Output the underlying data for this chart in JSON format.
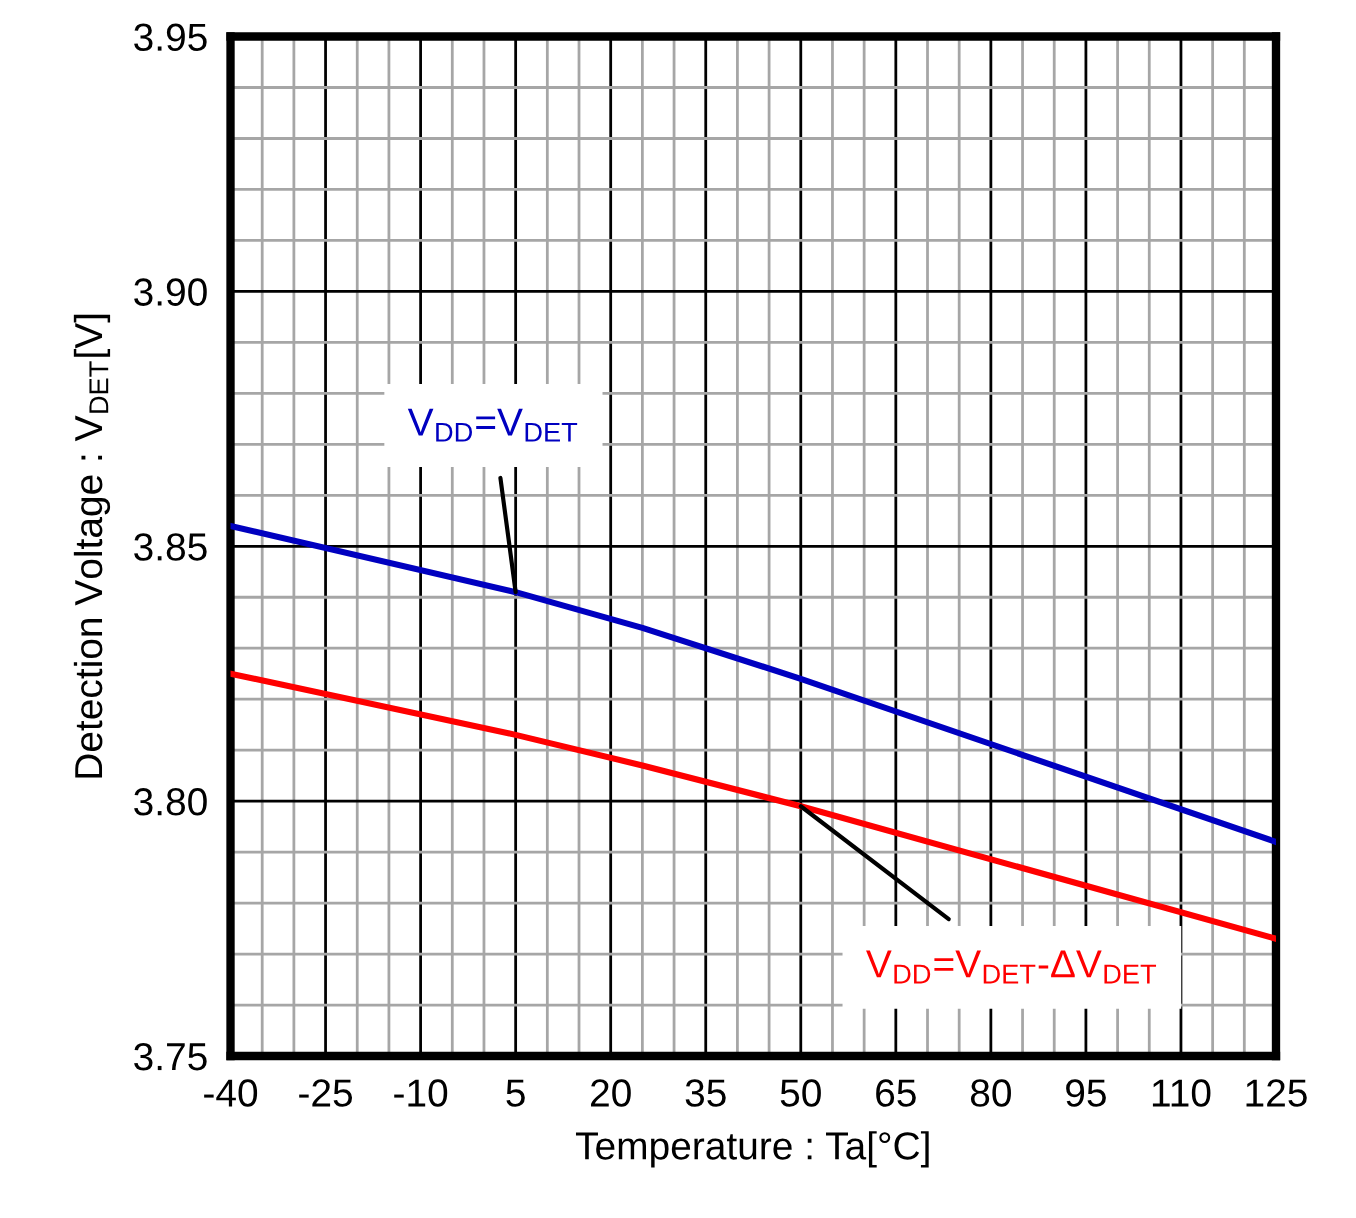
{
  "chart_data": {
    "type": "line",
    "xlabel": "Temperature : Ta[°C]",
    "ylabel": "Detection Voltage : V$_{DET}$[V]",
    "x": [
      -40,
      5,
      25,
      50,
      125
    ],
    "series": [
      {
        "color": "#0000c0",
        "values": [
          3.854,
          3.841,
          3.834,
          3.824,
          3.792
        ]
      },
      {
        "color": "#ff0000",
        "values": [
          3.825,
          3.813,
          3.807,
          3.799,
          3.773
        ]
      }
    ],
    "annotations": [
      {
        "text": "V$_{DD}$=V$_{DET}$",
        "x": 5,
        "y": 3.841
      },
      {
        "text": "V$_{DD}$=V$_{DET}$-ΔV$_{DET}$",
        "x": 50,
        "y": 3.799
      }
    ],
    "xlim": [
      -40,
      125
    ],
    "ylim": [
      3.75,
      3.95
    ],
    "xticks": [
      -40,
      -25,
      -10,
      5,
      20,
      35,
      50,
      65,
      80,
      95,
      110,
      125
    ],
    "yticks": [
      {
        "value": 3.75,
        "label": "3.75"
      },
      {
        "value": 3.8,
        "label": "3.80"
      },
      {
        "value": 3.85,
        "label": "3.85"
      },
      {
        "value": 3.9,
        "label": "3.90"
      },
      {
        "value": 3.95,
        "label": "3.95"
      }
    ],
    "grid": true,
    "marker": "none",
    "line_style": "solid"
  }
}
